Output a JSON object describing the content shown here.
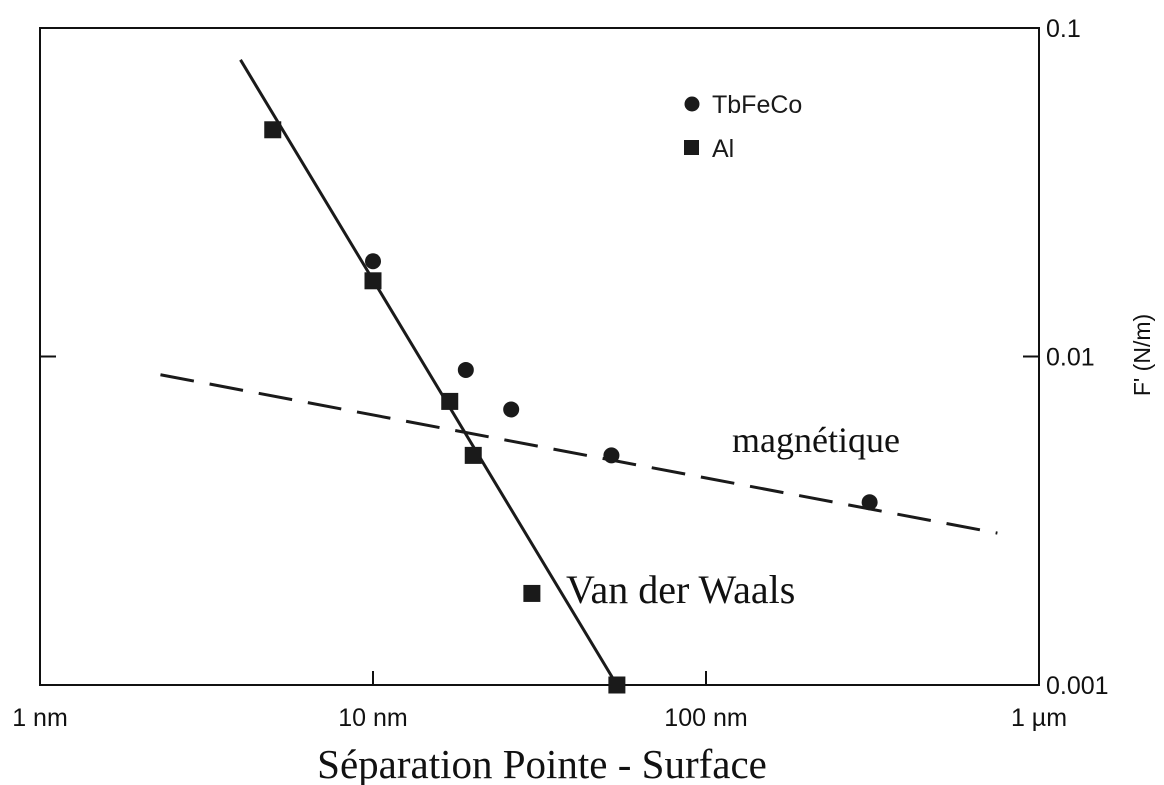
{
  "chart_data": {
    "type": "scatter",
    "x_scale": "log",
    "y_scale": "log",
    "xlim": [
      1e-09,
      1e-06
    ],
    "ylim": [
      0.001,
      0.1
    ],
    "grid": false,
    "legend_position": "top-right",
    "xlabel": "Séparation Pointe - Surface",
    "ylabel": "F' (N/m)",
    "x_ticks": [
      {
        "value": 1e-09,
        "label": "1 nm"
      },
      {
        "value": 1e-08,
        "label": "10 nm"
      },
      {
        "value": 1e-07,
        "label": "100 nm"
      },
      {
        "value": 1e-06,
        "label": "1 µm"
      }
    ],
    "y_ticks": [
      {
        "value": 0.1,
        "label": "0.1"
      },
      {
        "value": 0.01,
        "label": "0.01"
      },
      {
        "value": 0.001,
        "label": "0.001"
      }
    ],
    "series": [
      {
        "name": "TbFeCo",
        "marker": "circle",
        "points": [
          {
            "x": 1e-08,
            "y": 0.0195
          },
          {
            "x": 1.9e-08,
            "y": 0.0091
          },
          {
            "x": 2.6e-08,
            "y": 0.0069
          },
          {
            "x": 5.2e-08,
            "y": 0.005
          },
          {
            "x": 3.1e-07,
            "y": 0.0036
          }
        ]
      },
      {
        "name": "Al",
        "marker": "square",
        "points": [
          {
            "x": 5e-09,
            "y": 0.049
          },
          {
            "x": 1e-08,
            "y": 0.017
          },
          {
            "x": 1.7e-08,
            "y": 0.0073
          },
          {
            "x": 2e-08,
            "y": 0.005
          },
          {
            "x": 3e-08,
            "y": 0.0019
          },
          {
            "x": 5.4e-08,
            "y": 0.001
          }
        ]
      }
    ],
    "fit_lines": [
      {
        "label": "Van der Waals",
        "style": "solid",
        "from": {
          "x": 4e-09,
          "y": 0.08
        },
        "to": {
          "x": 5.4e-08,
          "y": 0.001
        }
      },
      {
        "label": "magnétique",
        "style": "dashed",
        "from": {
          "x": 2.3e-09,
          "y": 0.0088
        },
        "to": {
          "x": 7.5e-07,
          "y": 0.0029
        }
      }
    ],
    "annotations": [
      {
        "text": "magnétique",
        "x": 1.1e-07,
        "y": 0.0057
      },
      {
        "text": "Van der Waals",
        "x": 3.3e-08,
        "y": 0.0019
      }
    ]
  }
}
